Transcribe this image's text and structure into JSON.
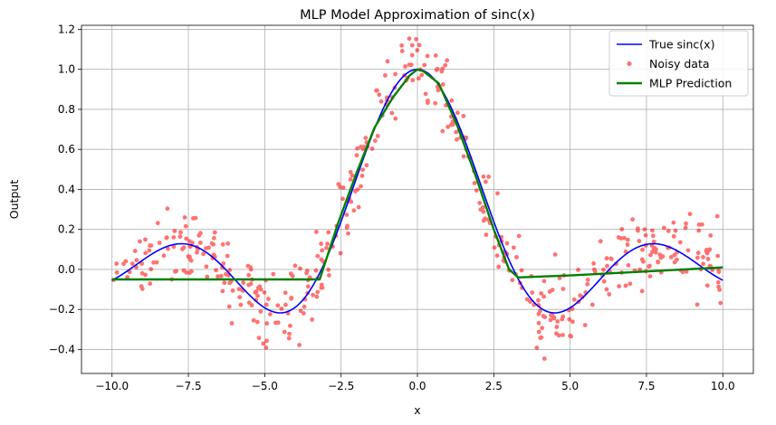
{
  "chart_data": {
    "type": "line",
    "title": "MLP Model Approximation of sinc(x)",
    "xlabel": "x",
    "ylabel": "Output",
    "xlim": [
      -11.0,
      11.0
    ],
    "ylim": [
      -0.52,
      1.22
    ],
    "xticks": [
      -10.0,
      -7.5,
      -5.0,
      -2.5,
      0.0,
      2.5,
      5.0,
      7.5,
      10.0
    ],
    "xtick_labels": [
      "−10.0",
      "−7.5",
      "−5.0",
      "−2.5",
      "0.0",
      "2.5",
      "5.0",
      "7.5",
      "10.0"
    ],
    "yticks": [
      -0.4,
      -0.2,
      0.0,
      0.2,
      0.4,
      0.6,
      0.8,
      1.0,
      1.2
    ],
    "ytick_labels": [
      "−0.4",
      "−0.2",
      "0.0",
      "0.2",
      "0.4",
      "0.6",
      "0.8",
      "1.0",
      "1.2"
    ],
    "grid": true,
    "legend_position": "top-right",
    "series": [
      {
        "name": "True sinc(x)",
        "kind": "line",
        "color": "#0000ff",
        "function": "sin(x)/x",
        "x_range": [
          -10,
          10
        ]
      },
      {
        "name": "Noisy data",
        "kind": "scatter",
        "color": "#ff0000",
        "approx_points": 500,
        "noise_std": 0.1,
        "x_range": [
          -10,
          10
        ]
      },
      {
        "name": "MLP Prediction",
        "kind": "line",
        "color": "#008000",
        "x": [
          -10.0,
          -3.2,
          -2.6,
          -2.0,
          -1.4,
          -0.8,
          -0.25,
          0.0,
          0.2,
          0.7,
          1.3,
          1.9,
          2.5,
          3.0,
          3.3,
          5.0,
          7.5,
          10.0
        ],
        "y": [
          -0.05,
          -0.05,
          0.23,
          0.48,
          0.71,
          0.86,
          0.97,
          1.0,
          0.99,
          0.93,
          0.72,
          0.47,
          0.2,
          0.0,
          -0.04,
          -0.03,
          -0.01,
          0.01
        ]
      }
    ]
  }
}
